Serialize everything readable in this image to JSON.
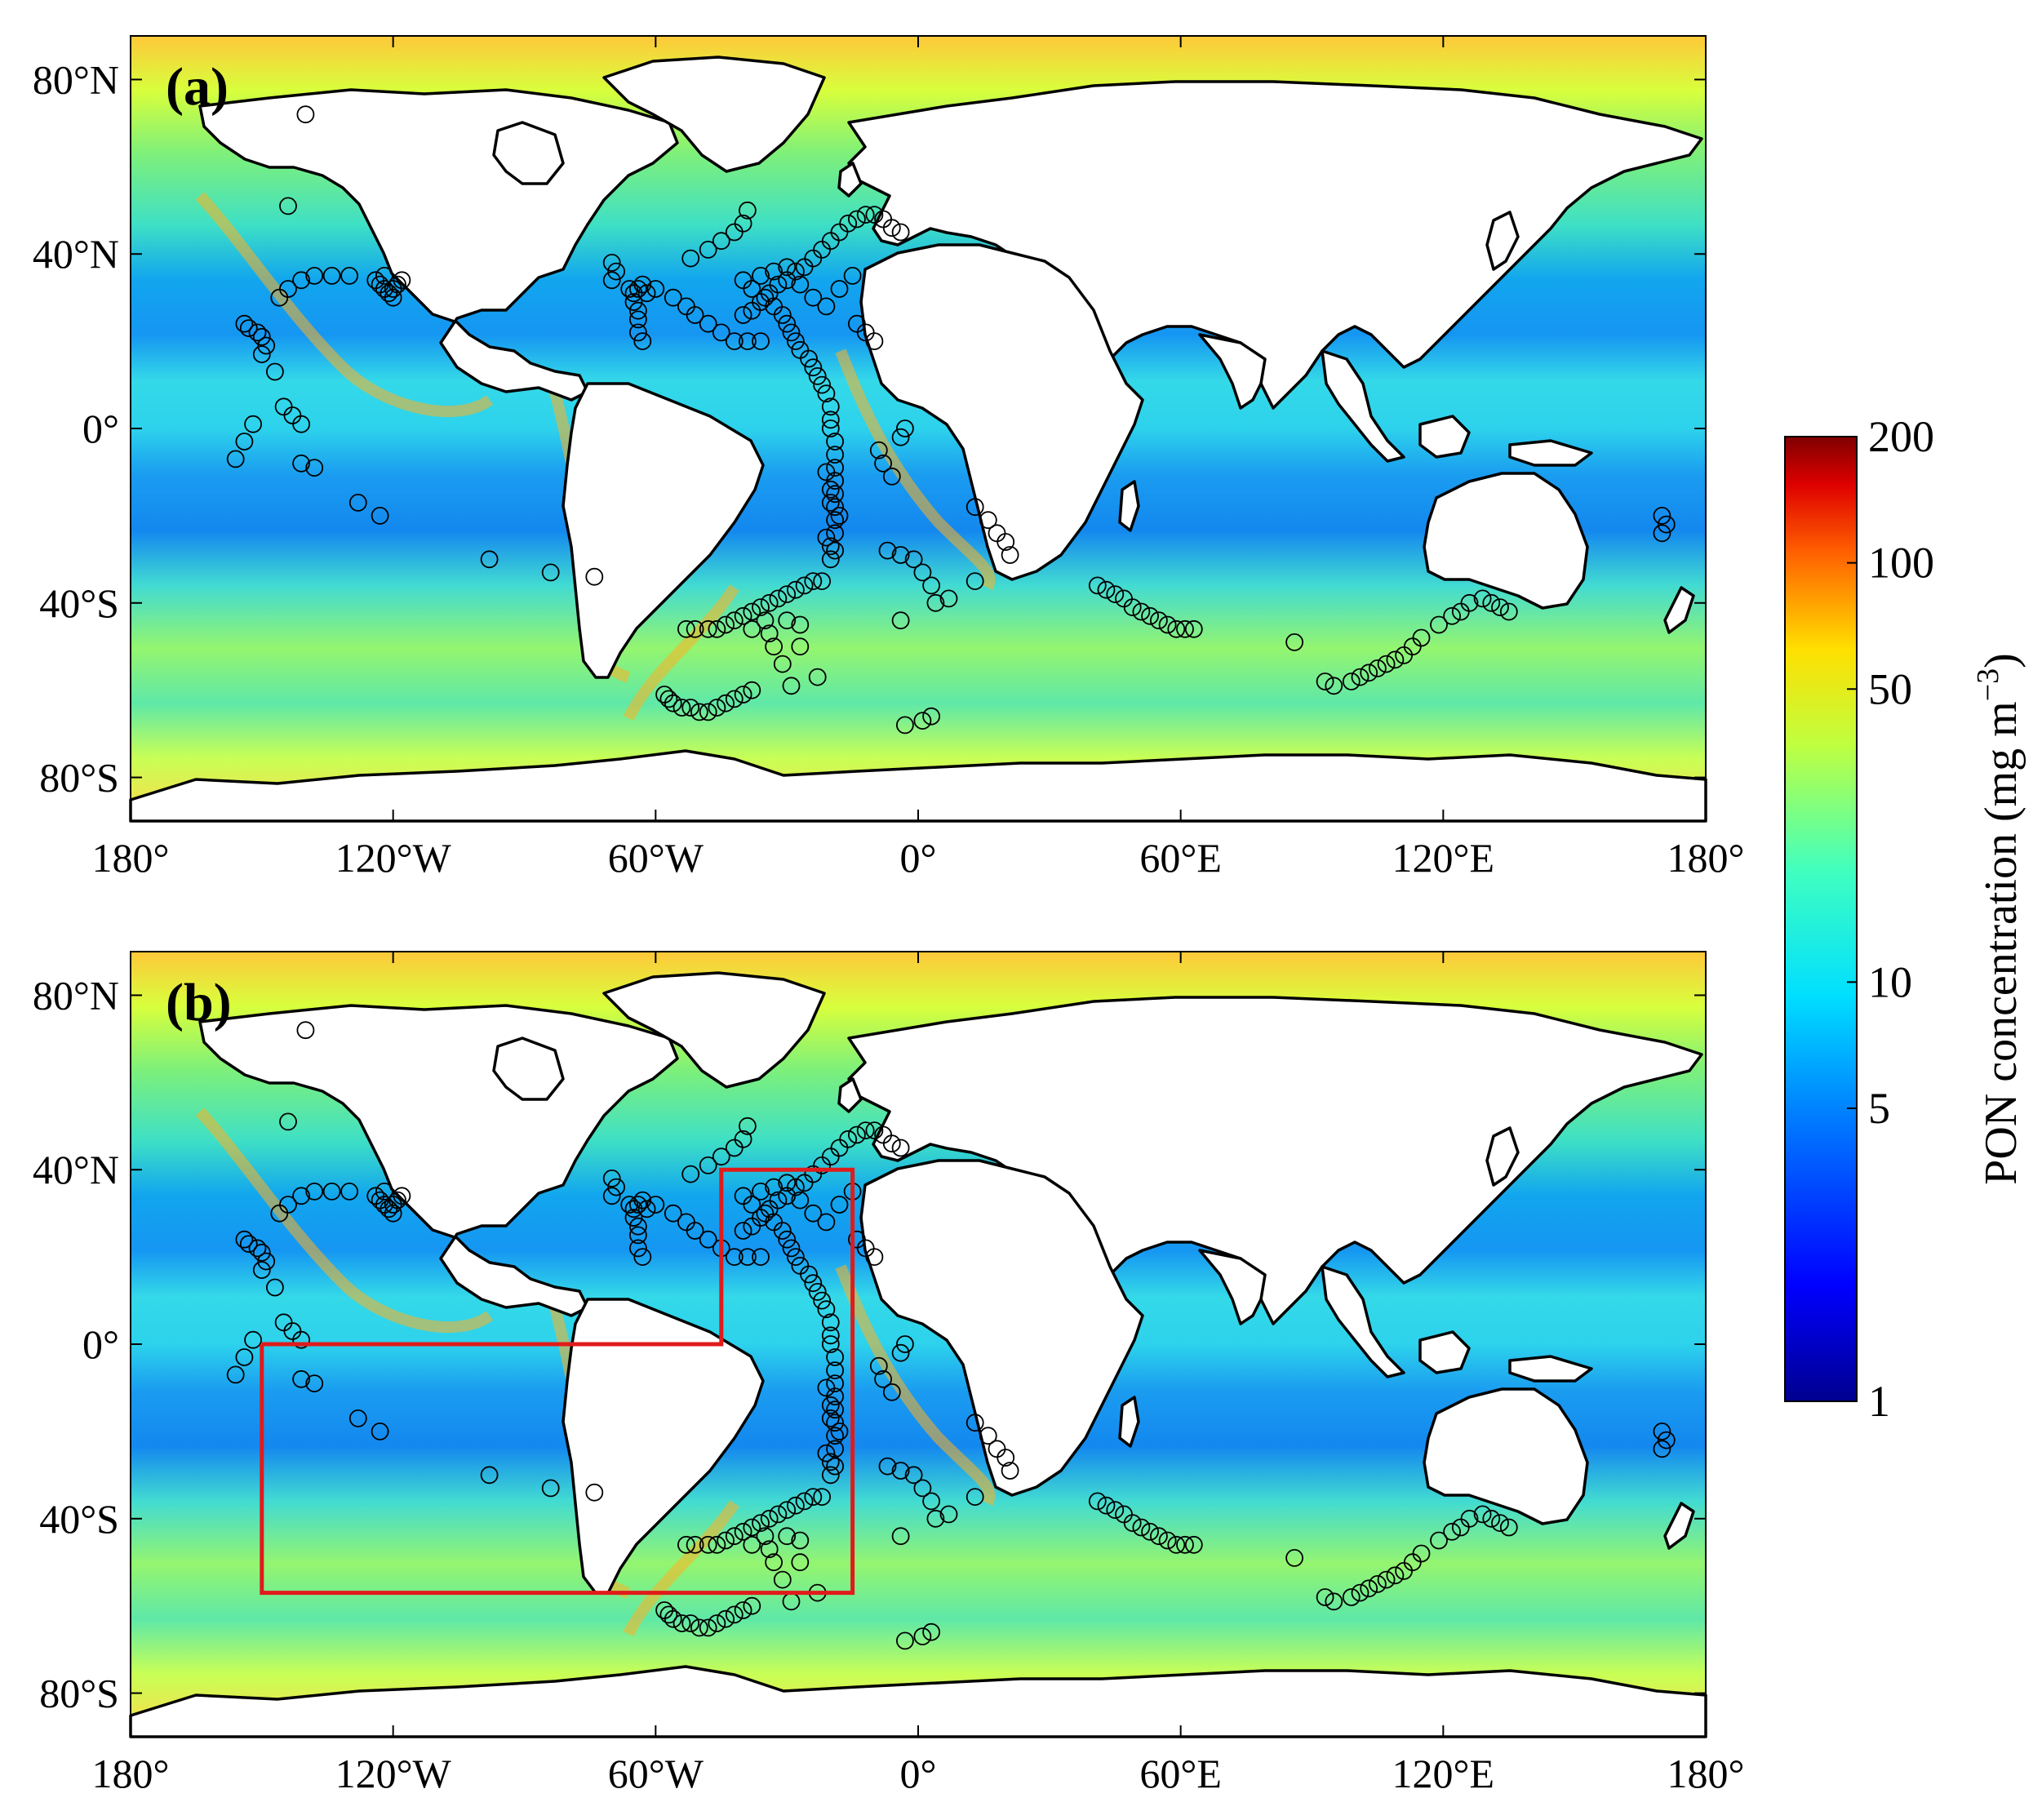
{
  "colors": {
    "land": "#ffffff",
    "coastline": "#000000",
    "station_marker": "#000000",
    "region_box": "#e01b1b",
    "colormap": "jet"
  },
  "map_axes": {
    "lon_ticks": [
      "180°",
      "120°W",
      "60°W",
      "0°",
      "60°E",
      "120°E",
      "180°"
    ],
    "lat_ticks": [
      "80°N",
      "40°N",
      "0°",
      "40°S",
      "80°S"
    ]
  },
  "panels": [
    {
      "label": "(a)",
      "has_region_box": false
    },
    {
      "label": "(b)",
      "has_region_box": true
    }
  ],
  "colorbar": {
    "title": "PON concentration (mg m",
    "title_superscript": "−3",
    "title_close": ")",
    "scale": "log",
    "tick_labels": [
      "200",
      "100",
      "50",
      "10",
      "5",
      "1"
    ],
    "tick_values": [
      200,
      100,
      50,
      10,
      5,
      1
    ],
    "range": [
      1,
      200
    ]
  },
  "chart_data": {
    "type": "map",
    "variable": "PON concentration",
    "scale": "log",
    "range": [
      1,
      200
    ],
    "extent": {
      "lon": [
        -180,
        180
      ],
      "lat": [
        -90,
        90
      ]
    },
    "region_box_b": [
      [
        -150,
        0
      ],
      [
        -45,
        0
      ],
      [
        -45,
        40
      ],
      [
        -15,
        40
      ],
      [
        -15,
        -57
      ],
      [
        -150,
        -57
      ],
      [
        -150,
        0
      ]
    ],
    "stations": [
      [
        -154,
        24
      ],
      [
        -153,
        23
      ],
      [
        -151,
        22
      ],
      [
        -150,
        21
      ],
      [
        -149,
        19
      ],
      [
        -150,
        17
      ],
      [
        -147,
        13
      ],
      [
        -156,
        -7
      ],
      [
        -154,
        -3
      ],
      [
        -152,
        1
      ],
      [
        -141,
        -8
      ],
      [
        -138,
        -9
      ],
      [
        -128,
        -17
      ],
      [
        -123,
        -20
      ],
      [
        -98,
        -30
      ],
      [
        -84,
        -33
      ],
      [
        -74,
        -34
      ],
      [
        -146,
        30
      ],
      [
        -144,
        32
      ],
      [
        -141,
        34
      ],
      [
        -138,
        35
      ],
      [
        -134,
        35
      ],
      [
        -130,
        35
      ],
      [
        -145,
        5
      ],
      [
        -143,
        3
      ],
      [
        -141,
        1
      ],
      [
        -140,
        72
      ],
      [
        -144,
        51
      ],
      [
        -124,
        34
      ],
      [
        -123,
        33
      ],
      [
        -122,
        32
      ],
      [
        -121,
        31
      ],
      [
        -120,
        32
      ],
      [
        -119,
        33
      ],
      [
        -118,
        34
      ],
      [
        -122,
        35
      ],
      [
        -120,
        30
      ],
      [
        -70,
        38
      ],
      [
        -69,
        36
      ],
      [
        -70,
        34
      ],
      [
        -66,
        32
      ],
      [
        -65,
        31
      ],
      [
        -64,
        32
      ],
      [
        -63,
        33
      ],
      [
        -62,
        31
      ],
      [
        -65,
        29
      ],
      [
        -64,
        27
      ],
      [
        -64,
        25
      ],
      [
        -64,
        22
      ],
      [
        -63,
        20
      ],
      [
        -60,
        32
      ],
      [
        -56,
        30
      ],
      [
        -53,
        28
      ],
      [
        -51,
        26
      ],
      [
        -48,
        24
      ],
      [
        -45,
        22
      ],
      [
        -42,
        20
      ],
      [
        -39,
        20
      ],
      [
        -36,
        20
      ],
      [
        -52,
        39
      ],
      [
        -48,
        41
      ],
      [
        -45,
        43
      ],
      [
        -42,
        45
      ],
      [
        -40,
        47
      ],
      [
        -39,
        50
      ],
      [
        -40,
        34
      ],
      [
        -38,
        32
      ],
      [
        -35,
        30
      ],
      [
        -33,
        28
      ],
      [
        -31,
        26
      ],
      [
        -30,
        24
      ],
      [
        -29,
        22
      ],
      [
        -28,
        20
      ],
      [
        -27,
        18
      ],
      [
        -25,
        16
      ],
      [
        -24,
        14
      ],
      [
        -23,
        12
      ],
      [
        -22,
        10
      ],
      [
        -21,
        8
      ],
      [
        -20,
        5
      ],
      [
        -20,
        2
      ],
      [
        -20,
        0
      ],
      [
        -19,
        -3
      ],
      [
        -19,
        -6
      ],
      [
        -19,
        -9
      ],
      [
        -19,
        -12
      ],
      [
        -19,
        -15
      ],
      [
        -19,
        -18
      ],
      [
        -19,
        -21
      ],
      [
        -19,
        -24
      ],
      [
        -20,
        -27
      ],
      [
        -20,
        -30
      ],
      [
        -18,
        -20
      ],
      [
        -21,
        -25
      ],
      [
        -20,
        -14
      ],
      [
        -21,
        -10
      ],
      [
        -20,
        -17
      ],
      [
        -19,
        -28
      ],
      [
        -40,
        26
      ],
      [
        -38,
        27
      ],
      [
        -36,
        29
      ],
      [
        -34,
        31
      ],
      [
        -32,
        33
      ],
      [
        -30,
        34
      ],
      [
        -28,
        36
      ],
      [
        -26,
        37
      ],
      [
        -24,
        39
      ],
      [
        -22,
        41
      ],
      [
        -20,
        43
      ],
      [
        -18,
        45
      ],
      [
        -16,
        47
      ],
      [
        -14,
        48
      ],
      [
        -12,
        49
      ],
      [
        -10,
        49
      ],
      [
        -8,
        48
      ],
      [
        -6,
        46
      ],
      [
        -4,
        45
      ],
      [
        -36,
        35
      ],
      [
        -33,
        36
      ],
      [
        -30,
        37
      ],
      [
        -27,
        33
      ],
      [
        -24,
        30
      ],
      [
        -21,
        28
      ],
      [
        -18,
        32
      ],
      [
        -15,
        35
      ],
      [
        -14,
        24
      ],
      [
        -12,
        22
      ],
      [
        -10,
        20
      ],
      [
        -9,
        -5
      ],
      [
        -8,
        -8
      ],
      [
        -6,
        -11
      ],
      [
        -4,
        -2
      ],
      [
        -3,
        0
      ],
      [
        -53,
        -46
      ],
      [
        -51,
        -46
      ],
      [
        -48,
        -46
      ],
      [
        -46,
        -46
      ],
      [
        -44,
        -45
      ],
      [
        -42,
        -44
      ],
      [
        -40,
        -43
      ],
      [
        -38,
        -42
      ],
      [
        -36,
        -41
      ],
      [
        -34,
        -40
      ],
      [
        -32,
        -39
      ],
      [
        -30,
        -38
      ],
      [
        -28,
        -37
      ],
      [
        -26,
        -36
      ],
      [
        -24,
        -35
      ],
      [
        -22,
        -35
      ],
      [
        -34,
        -47
      ],
      [
        -33,
        -50
      ],
      [
        -31,
        -54
      ],
      [
        -29,
        -59
      ],
      [
        -38,
        -46
      ],
      [
        -35,
        -44
      ],
      [
        -30,
        -44
      ],
      [
        -27,
        -45
      ],
      [
        -58,
        -61
      ],
      [
        -57,
        -62
      ],
      [
        -56,
        -63
      ],
      [
        -54,
        -64
      ],
      [
        -52,
        -64
      ],
      [
        -50,
        -65
      ],
      [
        -48,
        -65
      ],
      [
        -46,
        -64
      ],
      [
        -44,
        -63
      ],
      [
        -42,
        -62
      ],
      [
        -40,
        -61
      ],
      [
        -38,
        -60
      ],
      [
        -7,
        -28
      ],
      [
        -4,
        -29
      ],
      [
        -1,
        -30
      ],
      [
        1,
        -33
      ],
      [
        3,
        -36
      ],
      [
        -4,
        -44
      ],
      [
        4,
        -40
      ],
      [
        7,
        -39
      ],
      [
        1,
        -67
      ],
      [
        -3,
        -68
      ],
      [
        3,
        -66
      ],
      [
        13,
        -18
      ],
      [
        16,
        -21
      ],
      [
        18,
        -24
      ],
      [
        20,
        -26
      ],
      [
        21,
        -29
      ],
      [
        13,
        -35
      ],
      [
        -27,
        -50
      ],
      [
        -23,
        -57
      ],
      [
        41,
        -36
      ],
      [
        43,
        -37
      ],
      [
        45,
        -38
      ],
      [
        47,
        -39
      ],
      [
        49,
        -41
      ],
      [
        51,
        -42
      ],
      [
        53,
        -43
      ],
      [
        55,
        -44
      ],
      [
        57,
        -45
      ],
      [
        59,
        -46
      ],
      [
        61,
        -46
      ],
      [
        63,
        -46
      ],
      [
        86,
        -49
      ],
      [
        93,
        -58
      ],
      [
        95,
        -59
      ],
      [
        99,
        -58
      ],
      [
        101,
        -57
      ],
      [
        103,
        -56
      ],
      [
        105,
        -55
      ],
      [
        107,
        -54
      ],
      [
        109,
        -53
      ],
      [
        111,
        -52
      ],
      [
        113,
        -50
      ],
      [
        115,
        -48
      ],
      [
        119,
        -45
      ],
      [
        122,
        -43
      ],
      [
        124,
        -42
      ],
      [
        126,
        -40
      ],
      [
        129,
        -39
      ],
      [
        131,
        -40
      ],
      [
        133,
        -41
      ],
      [
        135,
        -42
      ],
      [
        170,
        -20
      ],
      [
        171,
        -22
      ],
      [
        170,
        -24
      ]
    ]
  }
}
